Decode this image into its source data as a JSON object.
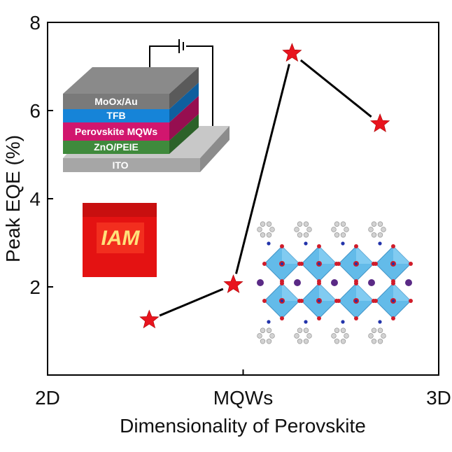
{
  "chart_data": {
    "type": "line",
    "marker": "star",
    "categories": [
      "2D",
      "MQWs",
      "3D"
    ],
    "xlabel": "Dimensionality of Perovskite",
    "ylabel": "Peak EQE (%)",
    "ylim": [
      0,
      8
    ],
    "yticks": [
      "2",
      "4",
      "6",
      "8"
    ],
    "grid": false,
    "series": [
      {
        "points": [
          {
            "x": 0.52,
            "y": 1.25
          },
          {
            "x": 0.95,
            "y": 2.05
          },
          {
            "x": 1.25,
            "y": 7.3
          },
          {
            "x": 1.7,
            "y": 5.7
          }
        ]
      }
    ],
    "colors": {
      "marker": "#e8141e",
      "line": "#000000"
    }
  },
  "insets": {
    "device_stack": {
      "layers": [
        {
          "label": "MoOx/Au",
          "color": "#7a7a7a"
        },
        {
          "label": "TFB",
          "color": "#1684d8"
        },
        {
          "label": "Perovskite MQWs",
          "color": "#d1166e"
        },
        {
          "label": "ZnO/PEIE",
          "color": "#3f8a3c"
        },
        {
          "label": "ITO",
          "color": "#a6a6a6"
        }
      ]
    },
    "device_photo": {
      "text": "IAM",
      "color": "#e41212"
    },
    "crystal_structure": {
      "octahedron_color": "#5bb8e8"
    }
  }
}
